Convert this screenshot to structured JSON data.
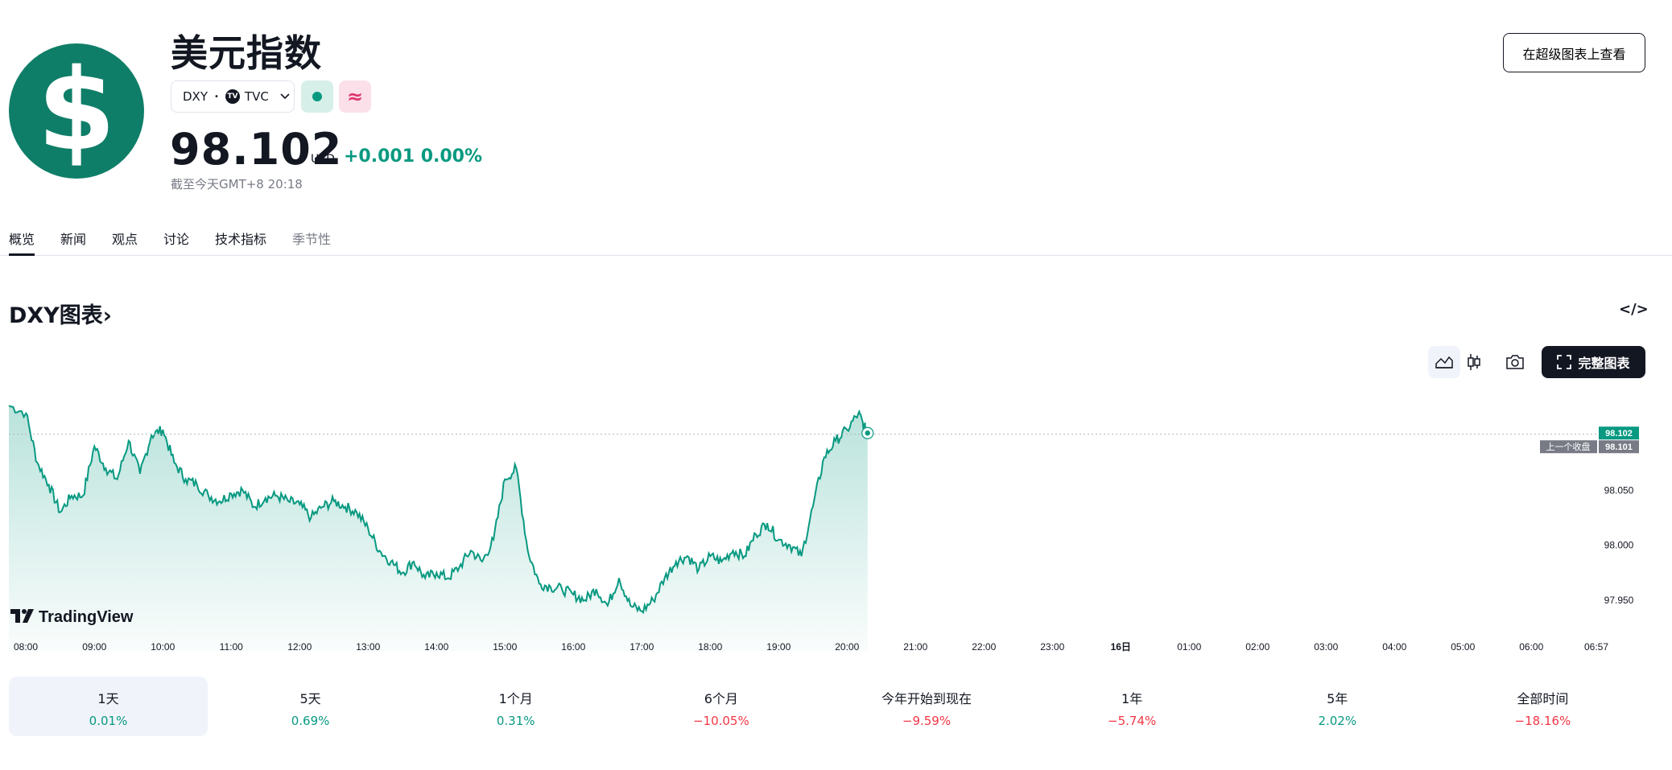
{
  "header": {
    "logo_glyph": "$",
    "title": "美元指数",
    "symbol": "DXY",
    "separator": "•",
    "exchange_logo": "TV",
    "exchange": "TVC",
    "badge2_glyph": "≈",
    "price": "98.102",
    "currency": "USD",
    "change": "+0.001",
    "change_pct": "0.00%",
    "as_of": "截至今天GMT+8 20:18",
    "supercharts_button": "在超级图表上查看",
    "accent_green": "#089981",
    "logo_color": "#0f7e68"
  },
  "tabs": [
    {
      "label": "概览",
      "active": true
    },
    {
      "label": "新闻"
    },
    {
      "label": "观点"
    },
    {
      "label": "讨论"
    },
    {
      "label": "技术指标"
    },
    {
      "label": "季节性"
    }
  ],
  "section": {
    "title": "DXY图表",
    "chevron": "›",
    "embed_icon": "</>",
    "full_chart_button": "完整图表"
  },
  "chart_data": {
    "type": "area",
    "title": "",
    "xlabel": "",
    "ylabel": "",
    "ylim": [
      97.925,
      98.13
    ],
    "x_ticks": [
      "08:00",
      "09:00",
      "10:00",
      "11:00",
      "12:00",
      "13:00",
      "14:00",
      "15:00",
      "16:00",
      "17:00",
      "18:00",
      "19:00",
      "20:00",
      "21:00",
      "22:00",
      "23:00",
      "16日",
      "01:00",
      "02:00",
      "03:00",
      "04:00",
      "05:00",
      "06:00",
      "06:57"
    ],
    "y_ticks": [
      "98.050",
      "98.000",
      "97.950"
    ],
    "current_price_label": "98.102",
    "previous_close_label": "98.101",
    "previous_close_text": "上一个收盘",
    "previous_close": 98.101,
    "watermark": "TradingView",
    "series": [
      {
        "x": [
          "07:45",
          "08:00",
          "08:10",
          "08:20",
          "08:30",
          "08:40",
          "08:50",
          "09:00",
          "09:10",
          "09:20",
          "09:30",
          "09:40",
          "09:50",
          "10:00",
          "10:10",
          "10:20",
          "10:30",
          "10:40",
          "10:50",
          "11:00",
          "11:10",
          "11:20",
          "11:30",
          "11:40",
          "11:50",
          "12:00",
          "12:10",
          "12:20",
          "12:30",
          "12:40",
          "12:50",
          "13:00",
          "13:10",
          "13:20",
          "13:30",
          "13:40",
          "13:50",
          "14:00",
          "14:10",
          "14:20",
          "14:30",
          "14:40",
          "14:50",
          "15:00",
          "15:10",
          "15:20",
          "15:30",
          "15:40",
          "15:50",
          "16:00",
          "16:10",
          "16:20",
          "16:30",
          "16:40",
          "16:50",
          "17:00",
          "17:10",
          "17:20",
          "17:30",
          "17:40",
          "17:50",
          "18:00",
          "18:10",
          "18:20",
          "18:30",
          "18:40",
          "18:50",
          "19:00",
          "19:10",
          "19:20",
          "19:30",
          "19:40",
          "19:50",
          "20:00",
          "20:10",
          "20:15",
          "20:18"
        ],
        "values": [
          98.127,
          98.12,
          98.075,
          98.055,
          98.03,
          98.045,
          98.045,
          98.09,
          98.07,
          98.06,
          98.095,
          98.065,
          98.1,
          98.105,
          98.075,
          98.06,
          98.055,
          98.045,
          98.04,
          98.047,
          98.05,
          98.035,
          98.043,
          98.045,
          98.04,
          98.037,
          98.025,
          98.035,
          98.04,
          98.035,
          98.03,
          98.015,
          97.995,
          97.985,
          97.975,
          97.985,
          97.97,
          97.975,
          97.97,
          97.98,
          97.995,
          97.985,
          98.005,
          98.06,
          98.07,
          97.995,
          97.965,
          97.962,
          97.96,
          97.955,
          97.95,
          97.96,
          97.945,
          97.97,
          97.945,
          97.94,
          97.95,
          97.97,
          97.985,
          97.99,
          97.978,
          97.99,
          97.985,
          97.995,
          97.99,
          98.01,
          98.02,
          98.005,
          98.0,
          97.99,
          98.035,
          98.08,
          98.095,
          98.105,
          98.12,
          98.108,
          98.102
        ]
      }
    ],
    "line_color": "#089981",
    "grid": false
  },
  "periods": [
    {
      "label": "1天",
      "value": "0.01%",
      "dir": "pos",
      "active": true
    },
    {
      "label": "5天",
      "value": "0.69%",
      "dir": "pos"
    },
    {
      "label": "1个月",
      "value": "0.31%",
      "dir": "pos"
    },
    {
      "label": "6个月",
      "value": "−10.05%",
      "dir": "neg"
    },
    {
      "label": "今年开始到现在",
      "value": "−9.59%",
      "dir": "neg"
    },
    {
      "label": "1年",
      "value": "−5.74%",
      "dir": "neg"
    },
    {
      "label": "5年",
      "value": "2.02%",
      "dir": "pos"
    },
    {
      "label": "全部时间",
      "value": "−18.16%",
      "dir": "neg"
    }
  ]
}
